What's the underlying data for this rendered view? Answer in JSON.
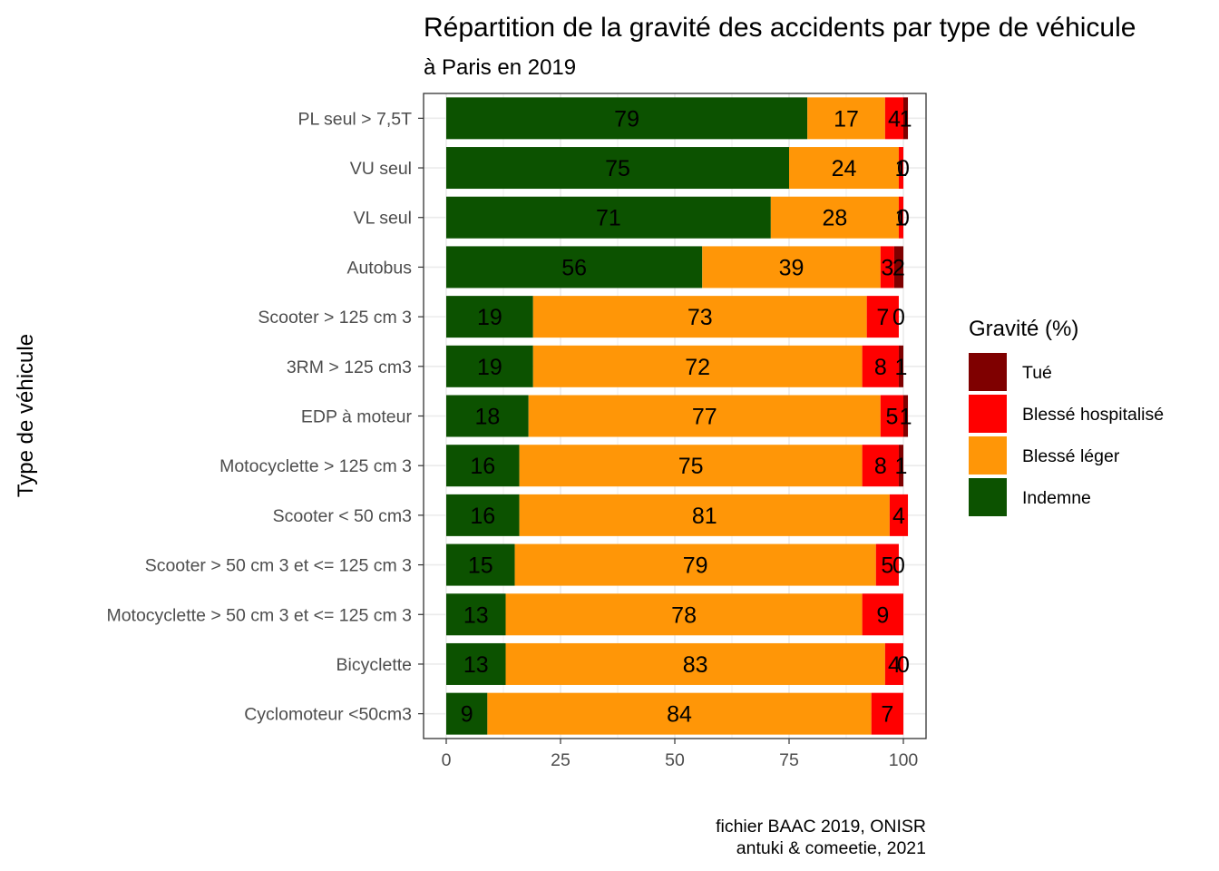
{
  "title": "Répartition de la gravité des accidents par type de véhicule",
  "subtitle": "à Paris en 2019",
  "caption": [
    "fichier BAAC 2019, ONISR",
    "antuki & comeetie, 2021"
  ],
  "legend": {
    "title": "Gravité (%)",
    "entries": [
      {
        "label": "Tué",
        "color": "#7f0000"
      },
      {
        "label": "Blessé hospitalisé",
        "color": "#ff0000"
      },
      {
        "label": "Blessé léger",
        "color": "#ff9607"
      },
      {
        "label": "Indemne",
        "color": "#0c5200"
      }
    ]
  },
  "chart_data": {
    "type": "bar",
    "orientation": "horizontal",
    "stacked": true,
    "title": "Répartition de la gravité des accidents par type de véhicule",
    "subtitle": "à Paris en 2019",
    "xlabel": "",
    "ylabel": "Type de véhicule",
    "xlim": [
      0,
      100
    ],
    "xticks": [
      0,
      25,
      50,
      75,
      100
    ],
    "grid": true,
    "legend_position": "right",
    "categories": [
      "PL seul > 7,5T",
      "VU seul",
      "VL seul",
      "Autobus",
      "Scooter > 125 cm 3",
      "3RM > 125 cm3",
      "EDP à moteur",
      "Motocyclette > 125 cm 3",
      "Scooter < 50 cm3",
      "Scooter > 50 cm 3 et <= 125 cm 3",
      "Motocyclette > 50 cm 3 et <= 125 cm 3",
      "Bicyclette",
      "Cyclomoteur <50cm3"
    ],
    "series": [
      {
        "name": "Indemne",
        "color": "#0c5200",
        "values": [
          79,
          75,
          71,
          56,
          19,
          19,
          18,
          16,
          16,
          15,
          13,
          13,
          9
        ],
        "labels": [
          "79",
          "75",
          "71",
          "56",
          "19",
          "19",
          "18",
          "16",
          "16",
          "15",
          "13",
          "13",
          "9"
        ]
      },
      {
        "name": "Blessé léger",
        "color": "#ff9607",
        "values": [
          17,
          24,
          28,
          39,
          73,
          72,
          77,
          75,
          81,
          79,
          78,
          83,
          84
        ],
        "labels": [
          "17",
          "24",
          "28",
          "39",
          "73",
          "72",
          "77",
          "75",
          "81",
          "79",
          "78",
          "83",
          "84"
        ]
      },
      {
        "name": "Blessé hospitalisé",
        "color": "#ff0000",
        "values": [
          4,
          1,
          1,
          3,
          7,
          8,
          5,
          8,
          4,
          5,
          9,
          4,
          7
        ],
        "labels": [
          "4",
          "1",
          "1",
          "3",
          "7",
          "8",
          "5",
          "8",
          "4",
          "5",
          "9",
          "4",
          "7"
        ]
      },
      {
        "name": "Tué",
        "color": "#7f0000",
        "values": [
          1,
          0,
          0,
          2,
          0,
          1,
          1,
          1,
          0,
          0,
          0,
          0,
          0
        ],
        "labels": [
          "1",
          "0",
          "0",
          "2",
          "0",
          "1",
          "1",
          "1",
          "",
          "0",
          "",
          "0",
          ""
        ]
      }
    ]
  }
}
